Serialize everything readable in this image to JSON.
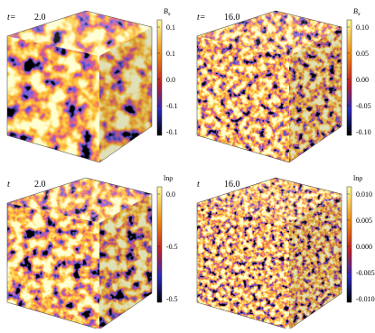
{
  "panels": [
    {
      "time_label": "t=",
      "time": "2.0",
      "colorbar_label": "B",
      "colorbar_label_sub": "x",
      "colorbar_ticks": [
        "0.1",
        "0.1",
        "0.0",
        "-0.1",
        "-0.1"
      ]
    },
    {
      "time_label": "t=",
      "time": "16.0",
      "colorbar_label": "B",
      "colorbar_label_sub": "x",
      "colorbar_ticks": [
        "0.10",
        "0.05",
        "0.00",
        "-0.05",
        "-0.10"
      ]
    },
    {
      "time_label": "t",
      "time": "2.0",
      "colorbar_label": "lnρ",
      "colorbar_ticks": [
        "0.0",
        "-0.5",
        "-0.5"
      ]
    },
    {
      "time_label": "t",
      "time": "16.0",
      "colorbar_label": "lnρ",
      "colorbar_ticks": [
        "0.010",
        "0.005",
        "0.000",
        "-0.005",
        "-0.010"
      ]
    }
  ]
}
